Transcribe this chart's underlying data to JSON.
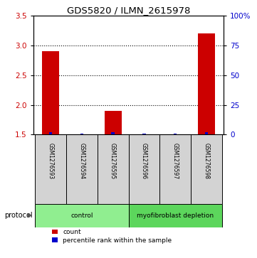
{
  "title": "GDS5820 / ILMN_2615978",
  "samples": [
    "GSM1276593",
    "GSM1276594",
    "GSM1276595",
    "GSM1276596",
    "GSM1276597",
    "GSM1276598"
  ],
  "counts": [
    2.9,
    1.5,
    1.9,
    1.5,
    1.5,
    3.2
  ],
  "percentile_ranks": [
    2,
    0,
    2,
    0,
    0,
    2
  ],
  "ylim_left": [
    1.5,
    3.5
  ],
  "ylim_right": [
    0,
    100
  ],
  "yticks_left": [
    1.5,
    2.0,
    2.5,
    3.0,
    3.5
  ],
  "yticks_right": [
    0,
    25,
    50,
    75,
    100
  ],
  "ytick_labels_right": [
    "0",
    "25",
    "50",
    "75",
    "100%"
  ],
  "bar_bottom": 1.5,
  "count_color": "#cc0000",
  "percentile_color": "#0000cc",
  "protocol_groups": [
    {
      "label": "control",
      "indices": [
        0,
        1,
        2
      ],
      "color": "#90ee90"
    },
    {
      "label": "myofibroblast depletion",
      "indices": [
        3,
        4,
        5
      ],
      "color": "#5cd65c"
    }
  ],
  "protocol_label": "protocol",
  "legend_count_label": "count",
  "legend_percentile_label": "percentile rank within the sample",
  "sample_box_color": "#d3d3d3",
  "gridline_color": "#000000",
  "grid_yticks": [
    2.0,
    2.5,
    3.0
  ]
}
